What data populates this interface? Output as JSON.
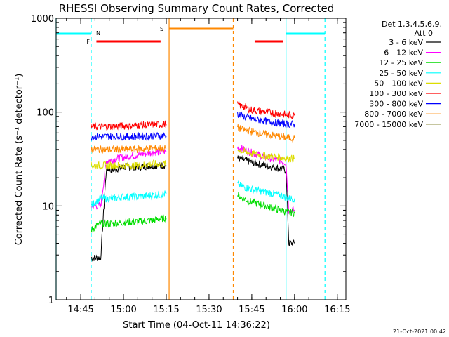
{
  "chart_data": {
    "type": "line",
    "title": "RHESSI Observing Summary Count Rates, Corrected",
    "xlabel": "Start Time (04-Oct-11 14:36:22)",
    "ylabel": "Corrected Count Rate (s⁻¹ detector⁻¹)",
    "y_scale": "log",
    "ylim": [
      1,
      1000
    ],
    "xlim": [
      "14:36:22",
      "16:18:00"
    ],
    "x_ticks": [
      "14:45",
      "15:00",
      "15:15",
      "15:30",
      "15:45",
      "16:00",
      "16:15"
    ],
    "y_ticks": [
      "1",
      "10",
      "100",
      "1000"
    ],
    "grid": false,
    "legend": {
      "placement": "right",
      "header": [
        "Det 1,3,4,5,6,9,",
        "Att 0"
      ]
    },
    "series": [
      {
        "name": "3 - 6 keV",
        "color": "#000000",
        "segments": [
          {
            "x": [
              "14:48:40",
              "14:50",
              "14:52",
              "14:54",
              "14:56",
              "14:58",
              "15:00",
              "15:05",
              "15:10",
              "15:14",
              "15:15"
            ],
            "y": [
              2.8,
              2.8,
              2.8,
              25,
              24,
              25,
              26,
              26,
              27,
              27,
              27
            ]
          },
          {
            "x": [
              "15:40",
              "15:42",
              "15:45",
              "15:50",
              "15:55",
              "15:57",
              "15:58",
              "16:00"
            ],
            "y": [
              32,
              31,
              29,
              27,
              25,
              24,
              4,
              4
            ]
          }
        ]
      },
      {
        "name": "6 - 12 keV",
        "color": "#ff00ff",
        "segments": [
          {
            "x": [
              "14:48:40",
              "14:50",
              "14:52",
              "14:54",
              "14:56",
              "15:00",
              "15:05",
              "15:10",
              "15:15"
            ],
            "y": [
              10,
              10,
              10,
              30,
              31,
              33,
              35,
              37,
              38
            ]
          },
          {
            "x": [
              "15:40",
              "15:42",
              "15:45",
              "15:50",
              "15:55",
              "15:57",
              "15:58",
              "16:00"
            ],
            "y": [
              42,
              40,
              37,
              33,
              30,
              29,
              9,
              9
            ]
          }
        ]
      },
      {
        "name": "12 - 25 keV",
        "color": "#00dd00",
        "segments": [
          {
            "x": [
              "14:48:40",
              "14:50",
              "14:52",
              "14:56",
              "15:00",
              "15:05",
              "15:10",
              "15:15"
            ],
            "y": [
              5.5,
              6,
              6.5,
              6.5,
              6.7,
              6.8,
              7,
              7.5
            ]
          },
          {
            "x": [
              "15:40",
              "15:42",
              "15:45",
              "15:50",
              "15:55",
              "15:58",
              "16:00"
            ],
            "y": [
              13,
              12,
              11,
              10,
              9,
              8.5,
              8.5
            ]
          }
        ]
      },
      {
        "name": "25 - 50 keV",
        "color": "#00ffff",
        "segments": [
          {
            "x": [
              "14:48:40",
              "14:50",
              "14:52",
              "14:56",
              "15:00",
              "15:05",
              "15:10",
              "15:15"
            ],
            "y": [
              10,
              11,
              12,
              12,
              12.5,
              12.5,
              13,
              13.5
            ]
          },
          {
            "x": [
              "15:40",
              "15:42",
              "15:45",
              "15:50",
              "15:55",
              "15:58",
              "16:00"
            ],
            "y": [
              17,
              16,
              15,
              14,
              13,
              12,
              12
            ]
          }
        ]
      },
      {
        "name": "50 - 100 keV",
        "color": "#dddd00",
        "segments": [
          {
            "x": [
              "14:48:40",
              "14:50",
              "14:55",
              "15:00",
              "15:05",
              "15:10",
              "15:15"
            ],
            "y": [
              27,
              27,
              27,
              27,
              27,
              28,
              28
            ]
          },
          {
            "x": [
              "15:40",
              "15:42",
              "15:45",
              "15:50",
              "15:55",
              "15:58",
              "16:00"
            ],
            "y": [
              40,
              38,
              36,
              34,
              33,
              32,
              32
            ]
          }
        ]
      },
      {
        "name": "100 - 300 keV",
        "color": "#ff0000",
        "segments": [
          {
            "x": [
              "14:48:40",
              "14:50",
              "14:55",
              "15:00",
              "15:05",
              "15:10",
              "15:15"
            ],
            "y": [
              70,
              70,
              70,
              71,
              72,
              73,
              75
            ]
          },
          {
            "x": [
              "15:40",
              "15:42",
              "15:45",
              "15:50",
              "15:55",
              "15:58",
              "16:00"
            ],
            "y": [
              120,
              115,
              105,
              100,
              96,
              93,
              92
            ]
          }
        ]
      },
      {
        "name": "300 - 800 keV",
        "color": "#0000ff",
        "segments": [
          {
            "x": [
              "14:48:40",
              "14:50",
              "14:55",
              "15:00",
              "15:05",
              "15:10",
              "15:15"
            ],
            "y": [
              55,
              55,
              55,
              55,
              55,
              56,
              56
            ]
          },
          {
            "x": [
              "15:40",
              "15:42",
              "15:45",
              "15:50",
              "15:55",
              "15:58",
              "16:00"
            ],
            "y": [
              95,
              90,
              85,
              80,
              76,
              74,
              74
            ]
          }
        ]
      },
      {
        "name": "800 - 7000 keV",
        "color": "#ff8800",
        "segments": [
          {
            "x": [
              "14:48:40",
              "14:50",
              "14:55",
              "15:00",
              "15:05",
              "15:10",
              "15:15"
            ],
            "y": [
              40,
              40,
              40,
              40,
              40,
              41,
              41
            ]
          },
          {
            "x": [
              "15:40",
              "15:42",
              "15:45",
              "15:50",
              "15:55",
              "15:58",
              "16:00"
            ],
            "y": [
              68,
              65,
              62,
              58,
              55,
              53,
              53
            ]
          }
        ]
      },
      {
        "name": "7000 - 15000 keV",
        "color": "#666600",
        "segments": []
      }
    ],
    "annotations": {
      "night_bars": {
        "label": "N",
        "color": "#00ffff",
        "dashed_x": [
          "14:48:40",
          "16:10:40"
        ],
        "solid_x": [
          "14:36:22",
          "15:57:00"
        ],
        "bars": [
          {
            "start": "14:36:22",
            "end": "14:48:40"
          },
          {
            "start": "15:57:00",
            "end": "16:10:40"
          }
        ]
      },
      "saa_bars": {
        "label": "S",
        "color": "#ff8800",
        "solid_x": [
          "15:16:00"
        ],
        "dashed_x": [
          "15:38:30"
        ],
        "bars": [
          {
            "start": "15:16:00",
            "end": "15:38:30"
          }
        ]
      },
      "flare_bars": {
        "label": "F",
        "color": "#ff0000",
        "bars": [
          {
            "start": "14:50:30",
            "end": "15:13:00"
          },
          {
            "start": "15:46:00",
            "end": "15:56:00"
          }
        ]
      }
    }
  },
  "footer": {
    "timestamp": "21-Oct-2021 00:42"
  }
}
